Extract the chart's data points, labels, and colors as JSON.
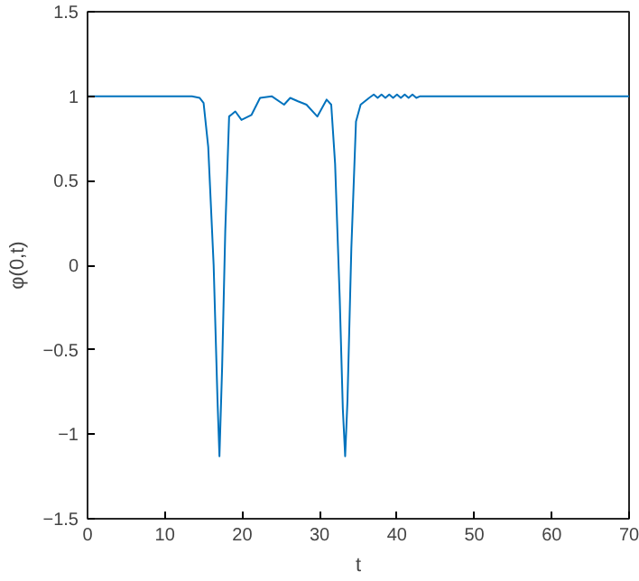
{
  "chart_data": {
    "type": "line",
    "xlabel": "t",
    "ylabel": "φ(0,t)",
    "xlim": [
      0,
      70
    ],
    "ylim": [
      -1.5,
      1.5
    ],
    "xticks": [
      0,
      10,
      20,
      30,
      40,
      50,
      60,
      70
    ],
    "yticks": [
      -1.5,
      -1,
      -0.5,
      0,
      0.5,
      1,
      1.5
    ],
    "grid": false,
    "series": [
      {
        "color": "#0072bd",
        "x": [
          0,
          10,
          13.5,
          14.5,
          15.0,
          15.6,
          16.3,
          16.8,
          17.05,
          17.4,
          17.8,
          18.3,
          19.1,
          19.9,
          21.2,
          22.3,
          23.8,
          25.4,
          26.2,
          27.2,
          28.3,
          29.7,
          30.9,
          31.5,
          32.0,
          32.6,
          33.0,
          33.3,
          33.6,
          34.1,
          34.7,
          35.3,
          36.4,
          37.0,
          37.5,
          38.0,
          38.5,
          39.0,
          39.5,
          40.0,
          40.5,
          41.0,
          41.5,
          42.0,
          42.5,
          43.0,
          44.0,
          45.0,
          46.0,
          48.0,
          50.0,
          60.0,
          70.0
        ],
        "values": [
          1,
          1,
          1,
          0.99,
          0.96,
          0.7,
          0,
          -0.8,
          -1.13,
          -0.6,
          0.2,
          0.88,
          0.91,
          0.86,
          0.89,
          0.99,
          1.0,
          0.95,
          0.99,
          0.97,
          0.95,
          0.88,
          0.98,
          0.95,
          0.6,
          -0.2,
          -0.85,
          -1.13,
          -0.8,
          0.1,
          0.85,
          0.95,
          0.99,
          1.01,
          0.99,
          1.01,
          0.99,
          1.01,
          0.99,
          1.01,
          0.99,
          1.01,
          0.99,
          1.01,
          0.99,
          1.0,
          1.0,
          1.0,
          1.0,
          1.0,
          1.0,
          1.0,
          1.0
        ]
      }
    ]
  }
}
